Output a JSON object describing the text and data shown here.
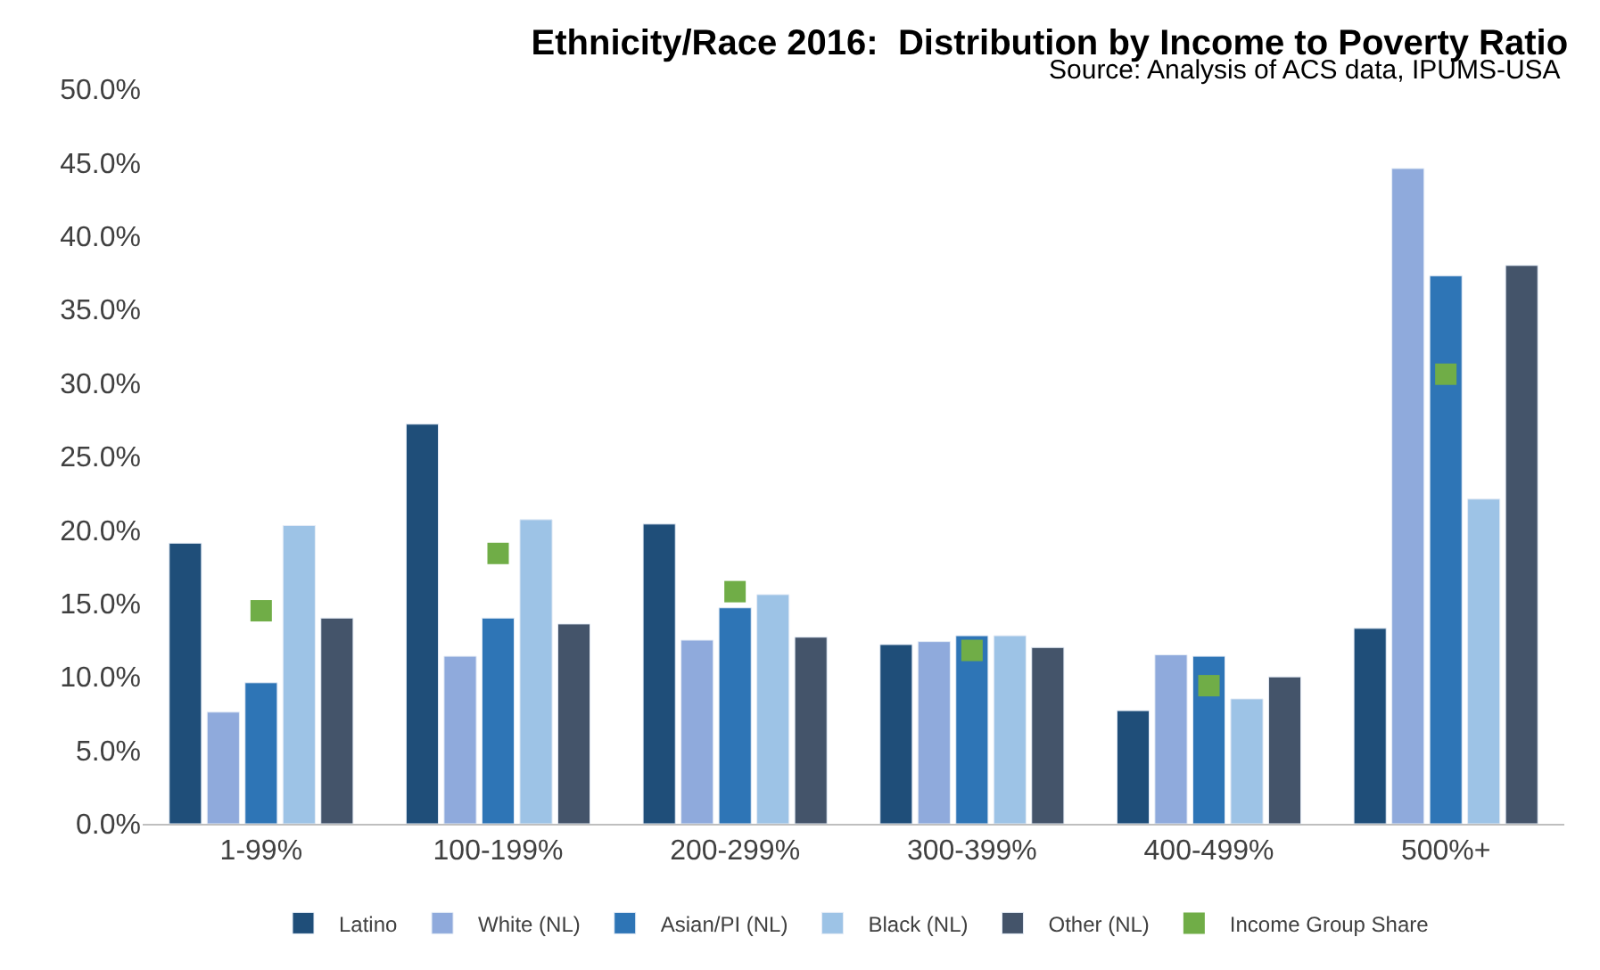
{
  "chart_data": {
    "type": "bar",
    "title": "Ethnicity/Race 2016:  Distribution by Income to Poverty Ratio",
    "annotations": [
      "Source: Analysis of ACS data, IPUMS-USA"
    ],
    "categories": [
      "1-99%",
      "100-199%",
      "200-299%",
      "300-399%",
      "400-499%",
      "500%+"
    ],
    "series": [
      {
        "name": "Latino",
        "color": "#1f4e79",
        "values": [
          19.1,
          27.2,
          20.4,
          12.2,
          7.7,
          13.3
        ]
      },
      {
        "name": "White (NL)",
        "color": "#8faadc",
        "values": [
          7.6,
          11.4,
          12.5,
          12.4,
          11.5,
          44.6
        ]
      },
      {
        "name": "Asian/PI (NL)",
        "color": "#2e75b6",
        "values": [
          9.6,
          14.0,
          14.7,
          12.8,
          11.4,
          37.3
        ]
      },
      {
        "name": "Black (NL)",
        "color": "#9dc3e6",
        "values": [
          20.3,
          20.7,
          15.6,
          12.8,
          8.5,
          22.1
        ]
      },
      {
        "name": "Other (NL)",
        "color": "#44546a",
        "values": [
          14.0,
          13.6,
          12.7,
          12.0,
          10.0,
          38.0
        ]
      },
      {
        "name": "Income Group Share",
        "type": "scatter",
        "marker": "square",
        "color": "#70ad47",
        "values": [
          14.5,
          18.4,
          15.8,
          11.8,
          9.4,
          30.6
        ]
      }
    ],
    "ylim": [
      0,
      50
    ],
    "yticks": [
      {
        "value": 0,
        "label": "0.0%"
      },
      {
        "value": 5,
        "label": "5.0%"
      },
      {
        "value": 10,
        "label": "10.0%"
      },
      {
        "value": 15,
        "label": "15.0%"
      },
      {
        "value": 20,
        "label": "20.0%"
      },
      {
        "value": 25,
        "label": "25.0%"
      },
      {
        "value": 30,
        "label": "30.0%"
      },
      {
        "value": 35,
        "label": "35.0%"
      },
      {
        "value": 40,
        "label": "40.0%"
      },
      {
        "value": 45,
        "label": "45.0%"
      },
      {
        "value": 50,
        "label": "50.0%"
      }
    ],
    "legend": "bottom",
    "grid": false
  }
}
